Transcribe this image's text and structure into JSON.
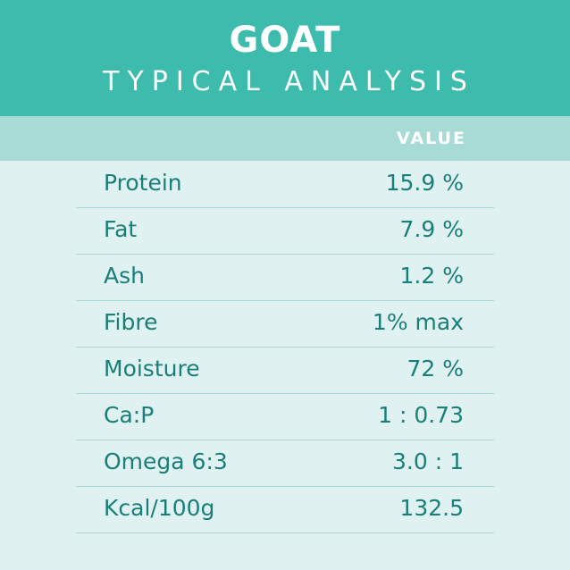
{
  "header": {
    "title": "GOAT",
    "subtitle": "TYPICAL ANALYSIS"
  },
  "table": {
    "column_header": "VALUE",
    "rows": [
      {
        "label": "Protein",
        "value": "15.9 %"
      },
      {
        "label": "Fat",
        "value": "7.9 %"
      },
      {
        "label": "Ash",
        "value": "1.2 %"
      },
      {
        "label": "Fibre",
        "value": "1% max"
      },
      {
        "label": "Moisture",
        "value": "72 %"
      },
      {
        "label": "Ca:P",
        "value": "1 : 0.73"
      },
      {
        "label": "Omega 6:3",
        "value": "3.0 : 1"
      },
      {
        "label": "Kcal/100g",
        "value": "132.5"
      }
    ]
  },
  "colors": {
    "header": "#3dbcad",
    "band": "#a8dbd5",
    "background": "#dff1f1",
    "text": "#1a7f78"
  }
}
